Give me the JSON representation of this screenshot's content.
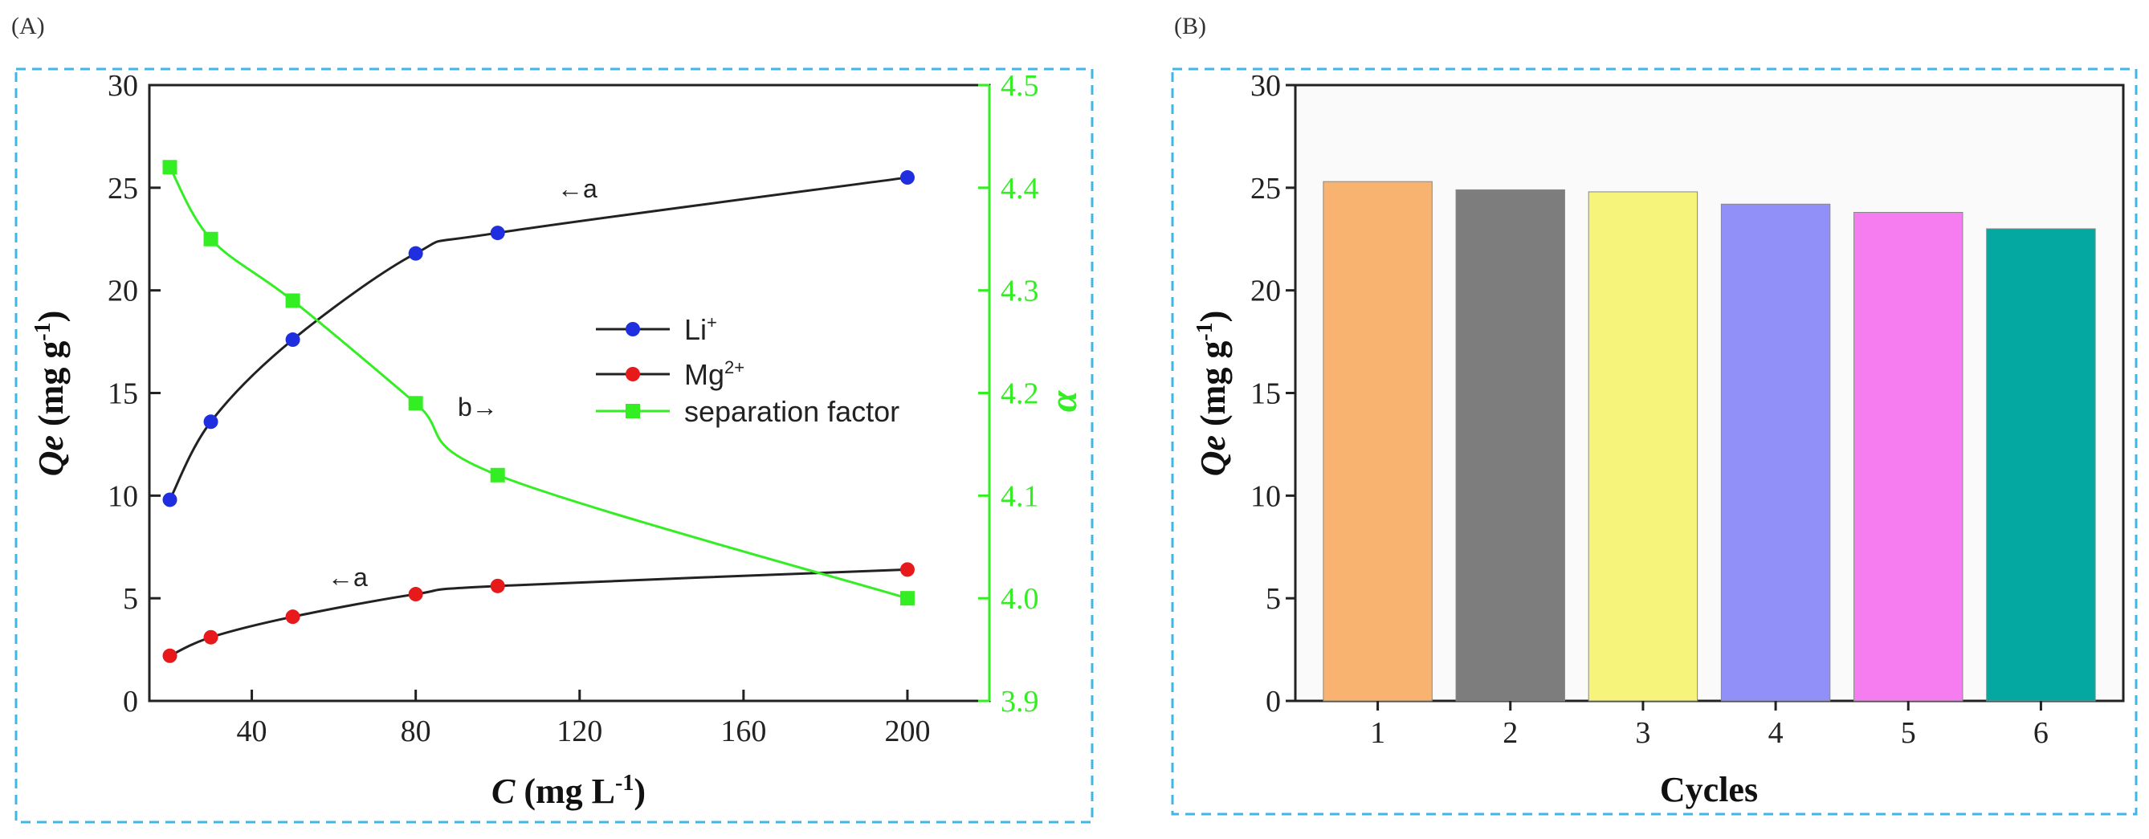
{
  "chart_data": [
    {
      "panel": "(A)",
      "type": "line",
      "xlabel_main": "C",
      "xlabel_unit": " (mg L",
      "xlabel_exp": "-1",
      "xlabel_close": ")",
      "ylabel_main": "Qe",
      "ylabel_unit": " (mg g",
      "ylabel_exp": "-1",
      "ylabel_close": ")",
      "y2label": "α",
      "xlim": [
        15,
        220
      ],
      "ylim": [
        0,
        30
      ],
      "y2lim": [
        3.9,
        4.5
      ],
      "xticks": [
        40,
        80,
        120,
        160,
        200
      ],
      "yticks": [
        0,
        5,
        10,
        15,
        20,
        25,
        30
      ],
      "y2ticks": [
        3.9,
        4.0,
        4.1,
        4.2,
        4.3,
        4.4,
        4.5
      ],
      "grid": false,
      "legend_position": "center-right",
      "series": [
        {
          "name": "Li",
          "name_sup": "+",
          "axis": "left",
          "marker": "circle",
          "color": "#1f2fe0",
          "line_color": "#222222",
          "x": [
            20,
            30,
            50,
            80,
            100,
            200
          ],
          "y": [
            9.8,
            13.6,
            17.6,
            21.8,
            22.8,
            25.5
          ]
        },
        {
          "name": "Mg",
          "name_sup": "2+",
          "axis": "left",
          "marker": "circle",
          "color": "#e8191b",
          "line_color": "#222222",
          "x": [
            20,
            30,
            50,
            80,
            100,
            200
          ],
          "y": [
            2.2,
            3.1,
            4.1,
            5.2,
            5.6,
            6.4
          ]
        },
        {
          "name": "separation factor",
          "axis": "right",
          "marker": "square",
          "color": "#33ee22",
          "line_color": "#33ee22",
          "x": [
            20,
            30,
            50,
            80,
            100,
            200
          ],
          "y": [
            4.42,
            4.35,
            4.29,
            4.19,
            4.12,
            4.0
          ]
        }
      ],
      "annotations": [
        "←a",
        "b→",
        "←a"
      ]
    },
    {
      "panel": "(B)",
      "type": "bar",
      "xlabel": "Cycles",
      "ylabel_main": "Qe",
      "ylabel_unit": " (mg g",
      "ylabel_exp": "-1",
      "ylabel_close": ")",
      "categories": [
        "1",
        "2",
        "3",
        "4",
        "5",
        "6"
      ],
      "values": [
        25.3,
        24.9,
        24.8,
        24.2,
        23.8,
        23.0
      ],
      "colors": [
        "#f7b36f",
        "#7d7d7d",
        "#f6f47a",
        "#9090f8",
        "#f57df0",
        "#05a8a0"
      ],
      "ylim": [
        0,
        30
      ],
      "yticks": [
        0,
        5,
        10,
        15,
        20,
        25,
        30
      ],
      "grid": false
    }
  ],
  "colors": {
    "frame": "#3fb6e6",
    "axis": "#222222",
    "secondary_axis": "#33ee22"
  }
}
